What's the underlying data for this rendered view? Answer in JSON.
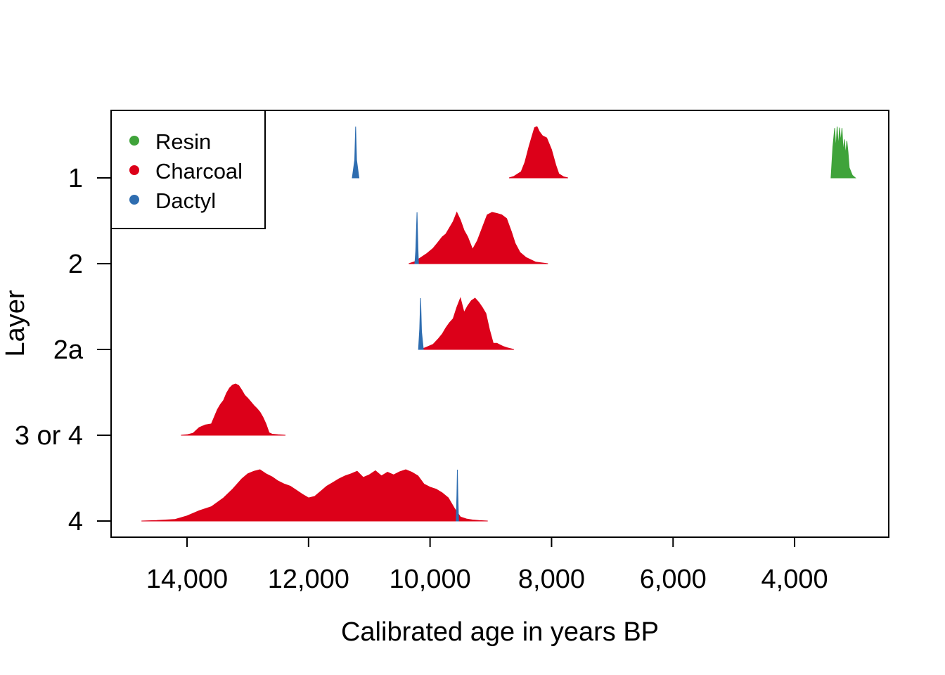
{
  "chart_data": {
    "type": "area",
    "title": "",
    "xlabel": "Calibrated age in years BP",
    "ylabel": "Layer",
    "x_reversed": true,
    "xlim": [
      15250,
      2450
    ],
    "x_ticks": [
      14000,
      12000,
      10000,
      8000,
      6000,
      4000
    ],
    "x_tick_labels": [
      "14,000",
      "12,000",
      "10,000",
      "8,000",
      "6,000",
      "4,000"
    ],
    "categories": [
      "1",
      "2",
      "2a",
      "3 or 4",
      "4"
    ],
    "grid": false,
    "legend": {
      "position": "top-left",
      "entries": [
        {
          "label": "Resin",
          "color": "#3fa33a"
        },
        {
          "label": "Charcoal",
          "color": "#dc0019"
        },
        {
          "label": "Dactyl",
          "color": "#2e6db0"
        }
      ]
    },
    "series": [
      {
        "name": "Dactyl",
        "layer": "1",
        "color": "#2e6db0",
        "x": [
          11280,
          11240,
          11225,
          11210,
          11170
        ],
        "density": [
          0,
          0.35,
          1,
          0.35,
          0
        ]
      },
      {
        "name": "Charcoal",
        "layer": "1",
        "color": "#dc0019",
        "x": [
          8700,
          8620,
          8500,
          8440,
          8370,
          8320,
          8280,
          8240,
          8200,
          8150,
          8080,
          8000,
          7930,
          7880,
          7800,
          7730
        ],
        "density": [
          0,
          0.03,
          0.12,
          0.3,
          0.62,
          0.82,
          0.98,
          1,
          0.9,
          0.82,
          0.78,
          0.55,
          0.25,
          0.08,
          0.02,
          0
        ]
      },
      {
        "name": "Resin",
        "layer": "1",
        "color": "#3fa33a",
        "x": [
          3400,
          3370,
          3340,
          3320,
          3300,
          3280,
          3260,
          3240,
          3220,
          3200,
          3180,
          3160,
          3140,
          3120,
          3100,
          3050,
          3000
        ],
        "density": [
          0,
          0.6,
          0.97,
          0.55,
          1,
          0.6,
          0.98,
          0.7,
          0.97,
          0.5,
          0.75,
          0.45,
          0.72,
          0.5,
          0.2,
          0.05,
          0
        ]
      },
      {
        "name": "Charcoal",
        "layer": "2",
        "color": "#dc0019",
        "x": [
          10350,
          10250,
          10150,
          10050,
          9950,
          9880,
          9800,
          9740,
          9680,
          9620,
          9560,
          9500,
          9440,
          9380,
          9300,
          9220,
          9140,
          9060,
          8980,
          8900,
          8820,
          8740,
          8660,
          8600,
          8520,
          8420,
          8260,
          8060
        ],
        "density": [
          0,
          0.04,
          0.12,
          0.2,
          0.3,
          0.4,
          0.52,
          0.58,
          0.7,
          0.82,
          1,
          0.85,
          0.65,
          0.52,
          0.28,
          0.45,
          0.7,
          0.95,
          1,
          0.98,
          0.95,
          0.88,
          0.62,
          0.4,
          0.22,
          0.12,
          0.03,
          0
        ]
      },
      {
        "name": "Dactyl",
        "layer": "2",
        "color": "#2e6db0",
        "x": [
          10250,
          10235,
          10215,
          10200,
          10190
        ],
        "density": [
          0,
          0.25,
          1,
          0.3,
          0
        ]
      },
      {
        "name": "Charcoal",
        "layer": "2a",
        "color": "#dc0019",
        "x": [
          10150,
          10050,
          9950,
          9870,
          9800,
          9740,
          9680,
          9620,
          9560,
          9500,
          9440,
          9380,
          9320,
          9260,
          9200,
          9140,
          9080,
          9020,
          8960,
          8900,
          8800,
          8720,
          8620
        ],
        "density": [
          0,
          0.05,
          0.1,
          0.2,
          0.3,
          0.42,
          0.52,
          0.6,
          0.82,
          1,
          0.72,
          0.85,
          0.95,
          1,
          0.92,
          0.82,
          0.7,
          0.38,
          0.12,
          0.12,
          0.06,
          0.03,
          0
        ]
      },
      {
        "name": "Dactyl",
        "layer": "2a",
        "color": "#2e6db0",
        "x": [
          10190,
          10170,
          10155,
          10140,
          10110
        ],
        "density": [
          0,
          0.4,
          1,
          0.35,
          0
        ]
      },
      {
        "name": "Charcoal",
        "layer": "3 or 4",
        "color": "#dc0019",
        "x": [
          14100,
          14000,
          13900,
          13800,
          13700,
          13600,
          13500,
          13450,
          13400,
          13350,
          13300,
          13250,
          13200,
          13150,
          13100,
          13050,
          13000,
          12950,
          12900,
          12850,
          12800,
          12750,
          12700,
          12650,
          12600,
          12500,
          12380
        ],
        "density": [
          0,
          0.01,
          0.04,
          0.15,
          0.2,
          0.22,
          0.5,
          0.6,
          0.68,
          0.82,
          0.92,
          0.98,
          1,
          0.97,
          0.88,
          0.78,
          0.72,
          0.65,
          0.58,
          0.52,
          0.45,
          0.35,
          0.22,
          0.05,
          0.02,
          0.01,
          0
        ]
      },
      {
        "name": "Charcoal",
        "layer": "4",
        "color": "#dc0019",
        "x": [
          14750,
          14500,
          14200,
          14000,
          13800,
          13600,
          13400,
          13250,
          13100,
          13000,
          12900,
          12800,
          12700,
          12600,
          12500,
          12400,
          12300,
          12200,
          12100,
          12000,
          11900,
          11800,
          11700,
          11600,
          11500,
          11400,
          11300,
          11200,
          11100,
          11000,
          10900,
          10800,
          10700,
          10600,
          10500,
          10400,
          10300,
          10200,
          10100,
          10000,
          9900,
          9800,
          9700,
          9600,
          9500,
          9400,
          9300,
          9200,
          9050
        ],
        "density": [
          0,
          0.01,
          0.03,
          0.1,
          0.2,
          0.28,
          0.45,
          0.62,
          0.82,
          0.92,
          0.97,
          1,
          0.92,
          0.86,
          0.78,
          0.72,
          0.68,
          0.6,
          0.52,
          0.45,
          0.48,
          0.58,
          0.68,
          0.75,
          0.82,
          0.88,
          0.92,
          0.97,
          0.85,
          0.9,
          0.98,
          0.88,
          0.95,
          0.9,
          0.96,
          1,
          0.95,
          0.88,
          0.72,
          0.66,
          0.62,
          0.55,
          0.45,
          0.25,
          0.08,
          0.04,
          0.02,
          0.01,
          0
        ]
      },
      {
        "name": "Dactyl",
        "layer": "4",
        "color": "#2e6db0",
        "x": [
          9570,
          9558,
          9550,
          9542,
          9530
        ],
        "density": [
          0,
          0.5,
          1,
          0.5,
          0
        ]
      }
    ]
  }
}
